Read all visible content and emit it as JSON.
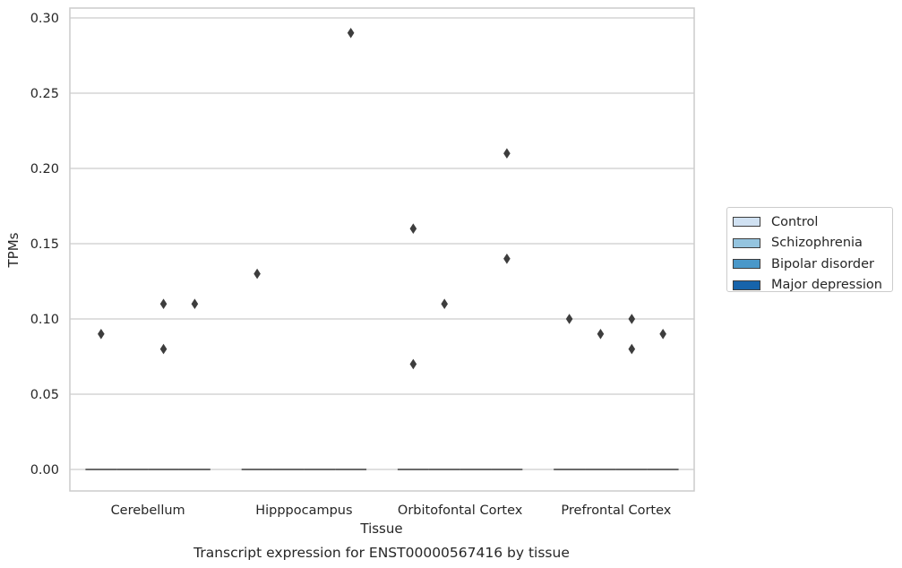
{
  "chart_data": {
    "type": "box",
    "title": "",
    "caption": "Transcript expression for ENST00000567416 by tissue",
    "xlabel": "Tissue",
    "ylabel": "TPMs",
    "ylim": [
      -0.014,
      0.305
    ],
    "yticks": [
      "0.00",
      "0.05",
      "0.10",
      "0.15",
      "0.20",
      "0.25",
      "0.30"
    ],
    "ytick_values": [
      0,
      0.05,
      0.1,
      0.15,
      0.2,
      0.25,
      0.3
    ],
    "grid": "horizontal",
    "legend_position": "right",
    "categories": [
      "Cerebellum",
      "Hipppocampus",
      "Orbitofontal Cortex",
      "Prefrontal Cortex"
    ],
    "series": [
      {
        "name": "Control",
        "color": "#d0e1f2",
        "median": [
          0,
          0,
          0,
          0
        ],
        "outliers": [
          [
            0.09
          ],
          [
            0.13
          ],
          [
            0.07,
            0.16
          ],
          [
            0.1
          ]
        ]
      },
      {
        "name": "Schizophrenia",
        "color": "#94c4df",
        "median": [
          0,
          0,
          0,
          0
        ],
        "outliers": [
          [],
          [],
          [
            0.11
          ],
          [
            0.09
          ]
        ]
      },
      {
        "name": "Bipolar disorder",
        "color": "#4a98c9",
        "median": [
          0,
          0,
          0,
          0
        ],
        "outliers": [
          [
            0.08,
            0.11
          ],
          [],
          [],
          [
            0.08,
            0.1
          ]
        ]
      },
      {
        "name": "Major depression",
        "color": "#1764ab",
        "median": [
          0,
          0,
          0,
          0
        ],
        "outliers": [
          [
            0.11
          ],
          [
            0.29
          ],
          [
            0.14,
            0.21
          ],
          [
            0.09
          ]
        ]
      }
    ]
  }
}
